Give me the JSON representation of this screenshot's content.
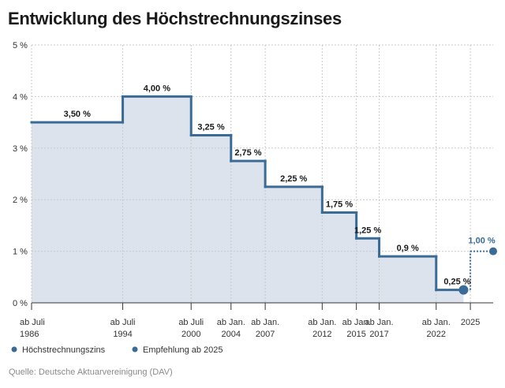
{
  "title": "Entwicklung des Höchstrechnungszinses",
  "source": "Quelle: Deutsche Aktuarvereinigung (DAV)",
  "colors": {
    "line": "#3a6a96",
    "area": "#dce3ec",
    "grid": "#c9c9c9",
    "recommendation": "#3a6a96"
  },
  "chart_data": {
    "type": "line",
    "step": true,
    "title": "Entwicklung des Höchstrechnungszinses",
    "ylabel": "",
    "xlabel": "",
    "ylim": [
      0,
      5
    ],
    "y_ticks": [
      {
        "value": 0,
        "label": "0 %"
      },
      {
        "value": 1,
        "label": "1 %"
      },
      {
        "value": 2,
        "label": "2 %"
      },
      {
        "value": 3,
        "label": "3 %"
      },
      {
        "value": 4,
        "label": "4 %"
      },
      {
        "value": 5,
        "label": "5 %"
      }
    ],
    "x_ticks": [
      {
        "year": 1986.5,
        "line1": "ab Juli",
        "line2": "1986"
      },
      {
        "year": 1994.5,
        "line1": "ab Juli",
        "line2": "1994"
      },
      {
        "year": 2000.5,
        "line1": "ab Juli",
        "line2": "2000"
      },
      {
        "year": 2004,
        "line1": "ab Jan.",
        "line2": "2004"
      },
      {
        "year": 2007,
        "line1": "ab Jan.",
        "line2": "2007"
      },
      {
        "year": 2012,
        "line1": "ab Jan.",
        "line2": "2012"
      },
      {
        "year": 2015,
        "line1": "ab Jan.",
        "line2": "2015"
      },
      {
        "year": 2017,
        "line1": "ab Jan.",
        "line2": "2017"
      },
      {
        "year": 2022,
        "line1": "ab Jan.",
        "line2": "2022"
      },
      {
        "year": 2025,
        "line1": "2025",
        "line2": ""
      }
    ],
    "x_range": [
      1986.5,
      2027
    ],
    "series": [
      {
        "name": "Höchstrechnungszins",
        "steps": [
          {
            "start": 1986.5,
            "end": 1994.5,
            "value": 3.5,
            "label": "3,50 %"
          },
          {
            "start": 1994.5,
            "end": 2000.5,
            "value": 4.0,
            "label": "4,00 %"
          },
          {
            "start": 2000.5,
            "end": 2004,
            "value": 3.25,
            "label": "3,25 %"
          },
          {
            "start": 2004,
            "end": 2007,
            "value": 2.75,
            "label": "2,75 %"
          },
          {
            "start": 2007,
            "end": 2012,
            "value": 2.25,
            "label": "2,25 %"
          },
          {
            "start": 2012,
            "end": 2015,
            "value": 1.75,
            "label": "1,75 %"
          },
          {
            "start": 2015,
            "end": 2017,
            "value": 1.25,
            "label": "1,25 %"
          },
          {
            "start": 2017,
            "end": 2022,
            "value": 0.9,
            "label": "0,9 %"
          },
          {
            "start": 2022,
            "end": 2024.4,
            "value": 0.25,
            "label": "0,25 %"
          }
        ],
        "end_marker": {
          "year": 2024.4,
          "value": 0.25
        }
      },
      {
        "name": "Empfehlung ab 2025",
        "from": {
          "year": 2025,
          "value": 0.25
        },
        "to": {
          "year": 2027,
          "value": 1.0
        },
        "label": "1,00 %"
      }
    ],
    "legend": [
      {
        "name": "Höchstrechnungszins",
        "color": "#3a6a96"
      },
      {
        "name": "Empfehlung ab 2025",
        "color": "#3a6a96"
      }
    ],
    "legend_position": "bottom-left"
  }
}
